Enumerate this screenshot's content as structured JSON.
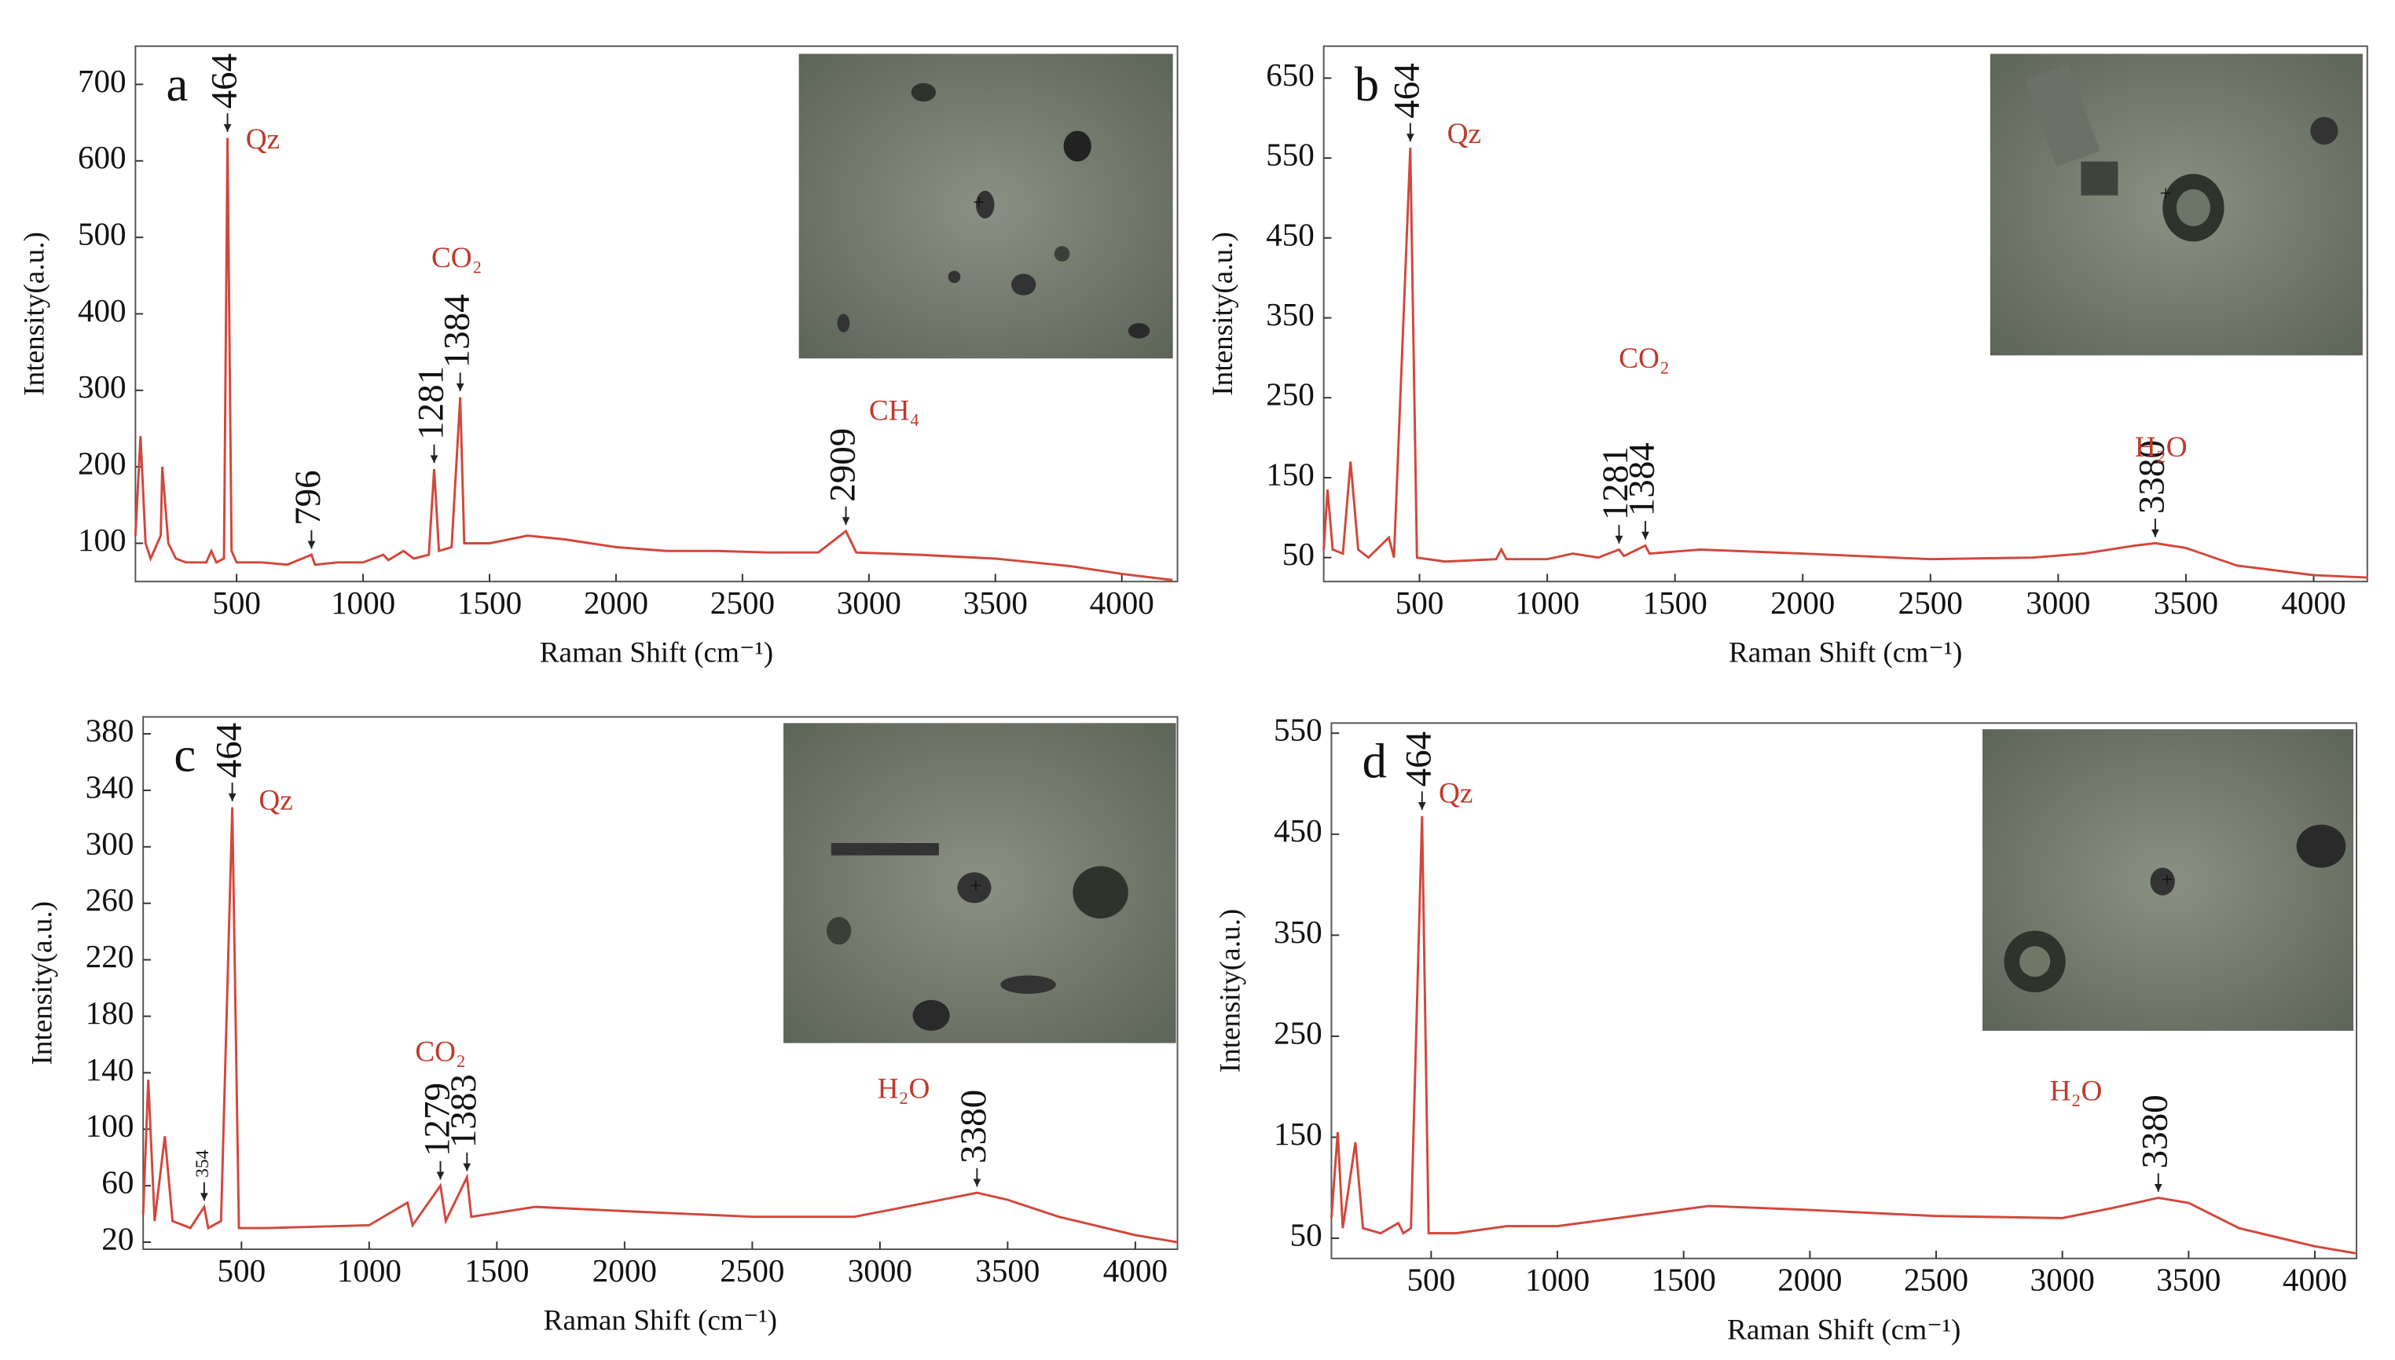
{
  "chart_data": [
    {
      "type": "line",
      "label": "a",
      "x_label": "Raman Shift (cm⁻¹)",
      "y_label": "Intensity(a.u.)",
      "color": "#d2473c",
      "x": [
        100,
        120,
        140,
        160,
        200,
        206,
        230,
        260,
        300,
        380,
        400,
        420,
        450,
        464,
        480,
        500,
        600,
        700,
        796,
        810,
        900,
        1000,
        1080,
        1100,
        1160,
        1200,
        1260,
        1281,
        1300,
        1350,
        1384,
        1400,
        1500,
        1650,
        1800,
        2000,
        2200,
        2400,
        2600,
        2800,
        2909,
        2950,
        3200,
        3500,
        3800,
        4000,
        4200
      ],
      "values": [
        110,
        240,
        100,
        80,
        110,
        200,
        100,
        80,
        75,
        75,
        90,
        75,
        80,
        630,
        90,
        75,
        75,
        72,
        85,
        72,
        75,
        75,
        85,
        78,
        90,
        80,
        85,
        197,
        90,
        95,
        291,
        100,
        100,
        110,
        105,
        95,
        90,
        90,
        88,
        88,
        116,
        88,
        85,
        80,
        70,
        60,
        52
      ],
      "xlim": [
        100,
        4220
      ],
      "ylim": [
        50,
        750
      ],
      "xticks": [
        500,
        1000,
        1500,
        2000,
        2500,
        3000,
        3500,
        4000
      ],
      "yticks": [
        100,
        200,
        300,
        400,
        500,
        600,
        700
      ],
      "peaks": [
        464,
        796,
        1281,
        1384,
        2909
      ],
      "annotations": [
        "Qz",
        "CO₂",
        "CH₄"
      ]
    },
    {
      "type": "line",
      "label": "b",
      "x_label": "Raman Shift (cm⁻¹)",
      "y_label": "Intensity(a.u.)",
      "color": "#d2473c",
      "x": [
        125,
        140,
        160,
        200,
        230,
        260,
        300,
        380,
        400,
        464,
        490,
        600,
        800,
        820,
        840,
        1000,
        1100,
        1200,
        1281,
        1300,
        1384,
        1400,
        1600,
        2000,
        2500,
        2900,
        3100,
        3300,
        3380,
        3500,
        3700,
        4000,
        4210
      ],
      "values": [
        60,
        135,
        60,
        55,
        170,
        60,
        50,
        75,
        50,
        563,
        50,
        45,
        48,
        60,
        48,
        48,
        55,
        50,
        60,
        52,
        65,
        55,
        60,
        55,
        48,
        50,
        55,
        65,
        68,
        62,
        40,
        28,
        25
      ],
      "xlim": [
        125,
        4210
      ],
      "ylim": [
        20,
        690
      ],
      "xticks": [
        500,
        1000,
        1500,
        2000,
        2500,
        3000,
        3500,
        4000
      ],
      "yticks": [
        50,
        150,
        250,
        350,
        450,
        550,
        650
      ],
      "peaks": [
        464,
        1281,
        1384,
        3380
      ],
      "annotations": [
        "Qz",
        "CO₂",
        "H₂O"
      ]
    },
    {
      "type": "line",
      "label": "c",
      "x_label": "Raman Shift (cm⁻¹)",
      "y_label": "Intensity(a.u.)",
      "color": "#d2473c",
      "x": [
        115,
        135,
        160,
        200,
        230,
        300,
        354,
        370,
        420,
        464,
        490,
        600,
        1000,
        1150,
        1170,
        1279,
        1300,
        1383,
        1400,
        1650,
        2000,
        2500,
        2900,
        3100,
        3380,
        3500,
        3700,
        4000,
        4165
      ],
      "values": [
        40,
        135,
        35,
        95,
        35,
        30,
        45,
        30,
        35,
        328,
        30,
        30,
        32,
        48,
        32,
        60,
        35,
        66,
        38,
        45,
        42,
        38,
        38,
        45,
        55,
        50,
        38,
        25,
        20
      ],
      "xlim": [
        115,
        4165
      ],
      "ylim": [
        15,
        392
      ],
      "xticks": [
        500,
        1000,
        1500,
        2000,
        2500,
        3000,
        3500,
        4000
      ],
      "yticks": [
        20,
        60,
        100,
        140,
        180,
        220,
        260,
        300,
        340,
        380
      ],
      "peaks": [
        354,
        464,
        1279,
        1383,
        3380
      ],
      "annotations": [
        "Qz",
        "CO₂",
        "H₂O"
      ]
    },
    {
      "type": "line",
      "label": "d",
      "x_label": "Raman Shift (cm⁻¹)",
      "y_label": "Intensity(a.u.)",
      "color": "#d2473c",
      "x": [
        105,
        130,
        150,
        200,
        230,
        300,
        370,
        390,
        420,
        464,
        490,
        600,
        800,
        1000,
        1300,
        1600,
        2000,
        2500,
        3000,
        3200,
        3380,
        3500,
        3700,
        4000,
        4165
      ],
      "values": [
        70,
        155,
        60,
        145,
        60,
        55,
        65,
        55,
        60,
        468,
        55,
        55,
        62,
        62,
        72,
        82,
        78,
        72,
        70,
        80,
        90,
        85,
        60,
        42,
        35
      ],
      "xlim": [
        105,
        4165
      ],
      "ylim": [
        30,
        560
      ],
      "xticks": [
        500,
        1000,
        1500,
        2000,
        2500,
        3000,
        3500,
        4000
      ],
      "yticks": [
        50,
        150,
        250,
        350,
        450,
        550
      ],
      "peaks": [
        464,
        3380
      ],
      "annotations": [
        "Qz",
        "H₂O"
      ]
    }
  ]
}
